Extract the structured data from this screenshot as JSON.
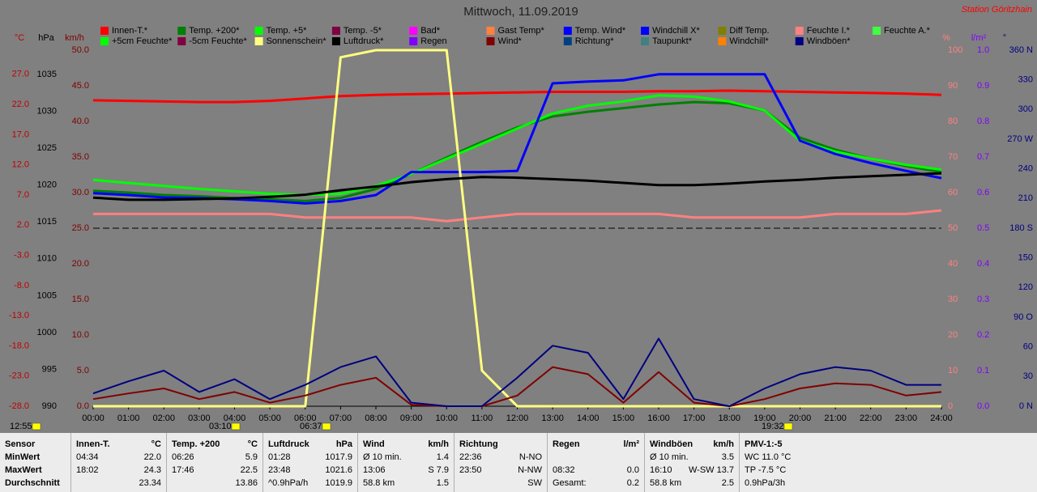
{
  "chart_data": {
    "type": "line",
    "title": "Mittwoch, 11.09.2019",
    "station": "Station Göritzhain",
    "categories": [
      "00:00",
      "01:00",
      "02:00",
      "03:00",
      "04:00",
      "05:00",
      "06:00",
      "07:00",
      "08:00",
      "09:00",
      "10:00",
      "11:00",
      "12:00",
      "13:00",
      "14:00",
      "15:00",
      "16:00",
      "17:00",
      "18:00",
      "19:00",
      "20:00",
      "21:00",
      "22:00",
      "23:00",
      "24:00"
    ],
    "time_markers": [
      "12:55",
      "03:10",
      "06:37",
      "19:32"
    ],
    "reference_line": 25,
    "axes": {
      "celsius": {
        "label": "°C",
        "color": "#c00000",
        "lim": [
          -28,
          31
        ],
        "ticks": [
          {
            "value": 27,
            "label": "27.0"
          },
          {
            "value": 22,
            "label": "22.0"
          },
          {
            "value": 17,
            "label": "17.0"
          },
          {
            "value": 12,
            "label": "12.0"
          },
          {
            "value": 7,
            "label": "7.0"
          },
          {
            "value": 2,
            "label": "2.0"
          },
          {
            "value": -3,
            "label": "-3.0"
          },
          {
            "value": -8,
            "label": "-8.0"
          },
          {
            "value": -13,
            "label": "-13.0"
          },
          {
            "value": -18,
            "label": "-18.0"
          },
          {
            "value": -23,
            "label": "-23.0"
          },
          {
            "value": -28,
            "label": "-28.0"
          }
        ]
      },
      "hpa": {
        "label": "hPa",
        "color": "#000000",
        "lim": [
          990,
          1038.3
        ],
        "ticks": [
          1035,
          1030,
          1025,
          1020,
          1015,
          1010,
          1005,
          1000,
          995,
          990
        ]
      },
      "kmh": {
        "label": "km/h",
        "color": "#800000",
        "lim": [
          0,
          50
        ],
        "ticks": [
          {
            "value": 50,
            "label": "50.0"
          },
          {
            "value": 45,
            "label": "45.0"
          },
          {
            "value": 40,
            "label": "40.0"
          },
          {
            "value": 35,
            "label": "35.0"
          },
          {
            "value": 30,
            "label": "30.0"
          },
          {
            "value": 25,
            "label": "25.0"
          },
          {
            "value": 20,
            "label": "20.0"
          },
          {
            "value": 15,
            "label": "15.0"
          },
          {
            "value": 10,
            "label": "10.0"
          },
          {
            "value": 5,
            "label": "5.0"
          },
          {
            "value": 0,
            "label": "0.0"
          }
        ]
      },
      "percent": {
        "label": "%",
        "color": "#ff8080",
        "lim": [
          0,
          100
        ],
        "ticks": [
          100,
          90,
          80,
          70,
          60,
          50,
          40,
          30,
          20,
          10,
          0
        ]
      },
      "rain": {
        "label": "l/m²",
        "color": "#8000ff",
        "lim": [
          0,
          1
        ],
        "ticks": [
          {
            "value": 1,
            "label": "1.0"
          },
          0.9,
          0.8,
          0.7,
          0.6,
          0.5,
          0.4,
          0.3,
          0.2,
          0.1,
          {
            "value": 0,
            "label": "0.0"
          }
        ]
      },
      "direction": {
        "label": "°",
        "color": "#000080",
        "lim": [
          0,
          360
        ],
        "ticks": [
          {
            "value": 360,
            "label": "360 N"
          },
          330,
          300,
          {
            "value": 270,
            "label": "270 W"
          },
          240,
          210,
          {
            "value": 180,
            "label": "180 S"
          },
          150,
          120,
          {
            "value": 90,
            "label": "90 O"
          },
          60,
          30,
          {
            "value": 0,
            "label": "0 N"
          }
        ]
      }
    },
    "series": [
      {
        "name": "Innen-T.*",
        "color": "#ff0000",
        "axis": "celsius",
        "values": [
          22.7,
          22.6,
          22.5,
          22.4,
          22.4,
          22.6,
          23.0,
          23.4,
          23.6,
          23.7,
          23.8,
          23.9,
          24.0,
          24.1,
          24.1,
          24.1,
          24.2,
          24.2,
          24.3,
          24.2,
          24.1,
          24.0,
          23.9,
          23.8,
          23.6
        ]
      },
      {
        "name": "Temp. +200*",
        "color": "#008000",
        "axis": "celsius",
        "values": [
          7.7,
          7.4,
          7.0,
          6.8,
          6.5,
          6.3,
          6.0,
          6.5,
          8.0,
          10.5,
          13.2,
          15.8,
          18.2,
          20.0,
          20.8,
          21.4,
          22.0,
          22.4,
          22.2,
          21.0,
          16.5,
          14.5,
          13.0,
          11.8,
          10.8
        ]
      },
      {
        "name": "Temp. +5*",
        "color": "#00ff00",
        "axis": "celsius",
        "values": [
          9.5,
          9.0,
          8.5,
          8.0,
          7.6,
          7.2,
          7.0,
          7.2,
          8.5,
          10.5,
          13.0,
          15.5,
          18.0,
          20.5,
          21.8,
          22.5,
          23.5,
          23.3,
          22.5,
          21.0,
          16.0,
          14.2,
          13.0,
          12.0,
          11.2
        ]
      },
      {
        "name": "Temp. -5*",
        "color": "#800040"
      },
      {
        "name": "Bad*",
        "color": "#ff00ff"
      },
      {
        "name": "Gast Temp*",
        "color": "#ff8040"
      },
      {
        "name": "Temp. Wind*",
        "color": "#0000ff",
        "axis": "celsius",
        "values": [
          7.3,
          7.0,
          6.6,
          6.5,
          6.3,
          6.0,
          5.6,
          6.0,
          7.0,
          10.8,
          10.8,
          10.8,
          11.0,
          25.5,
          25.8,
          26.0,
          27.0,
          27.0,
          27.0,
          27.0,
          16.0,
          13.8,
          12.3,
          11.0,
          9.8
        ]
      },
      {
        "name": "Windchill X*",
        "color": "#0000ff"
      },
      {
        "name": "Diff Temp.",
        "color": "#808000"
      },
      {
        "name": "Feuchte I.*",
        "color": "#ff8080",
        "axis": "percent",
        "values": [
          54,
          54,
          54,
          54,
          54,
          54,
          53,
          53,
          53,
          53,
          52,
          53,
          54,
          54,
          54,
          54,
          54,
          53,
          53,
          53,
          53,
          54,
          54,
          54,
          55
        ]
      },
      {
        "name": "Feuchte A.*",
        "color": "#40ff40"
      },
      {
        "name": "+5cm Feuchte*",
        "color": "#00ff00"
      },
      {
        "name": "-5cm Feuchte*",
        "color": "#800040"
      },
      {
        "name": "Sonnenschein*",
        "color": "#ffff80",
        "axis": "percent",
        "values": [
          0,
          0,
          0,
          0,
          0,
          0,
          0,
          98,
          100,
          100,
          100,
          10,
          0,
          0,
          0,
          0,
          0,
          0,
          0,
          0,
          0,
          0,
          0,
          0,
          0
        ]
      },
      {
        "name": "Luftdruck*",
        "color": "#000000",
        "axis": "hpa",
        "values": [
          1018.3,
          1018.0,
          1018.0,
          1018.1,
          1018.2,
          1018.4,
          1018.7,
          1019.3,
          1019.8,
          1020.4,
          1020.8,
          1021.1,
          1021.0,
          1020.8,
          1020.6,
          1020.3,
          1020.0,
          1020.0,
          1020.2,
          1020.5,
          1020.7,
          1021.0,
          1021.2,
          1021.4,
          1021.6
        ]
      },
      {
        "name": "Regen",
        "color": "#8000ff"
      },
      {
        "name": "Wind*",
        "color": "#800000",
        "axis": "kmh",
        "values": [
          1.0,
          1.8,
          2.5,
          1.0,
          2.0,
          0.5,
          1.5,
          3.0,
          4.0,
          0.2,
          0,
          0,
          1.5,
          5.5,
          4.5,
          0.5,
          4.8,
          0.5,
          0,
          1.0,
          2.5,
          3.2,
          3.0,
          1.5,
          2.0
        ]
      },
      {
        "name": "Richtung*",
        "color": "#004080"
      },
      {
        "name": "Taupunkt*",
        "color": "#408080"
      },
      {
        "name": "Windchill*",
        "color": "#ff8000"
      },
      {
        "name": "Windböen*",
        "color": "#000080",
        "axis": "kmh",
        "values": [
          1.8,
          3.5,
          5.0,
          2.0,
          3.8,
          1.0,
          3.0,
          5.5,
          7.0,
          0.5,
          0,
          0,
          4.0,
          8.5,
          7.5,
          1.0,
          9.5,
          1.0,
          0,
          2.5,
          4.5,
          5.5,
          5.0,
          3.0,
          3.0
        ]
      }
    ]
  },
  "stats": [
    {
      "title": "Sensor",
      "rows": [
        [
          "MinWert"
        ],
        [
          "MaxWert"
        ],
        [
          "Durchschnitt"
        ]
      ]
    },
    {
      "title": "Innen-T.",
      "unit": "°C",
      "rows": [
        [
          "04:34",
          "22.0"
        ],
        [
          "18:02",
          "24.3"
        ],
        [
          "23.34"
        ]
      ]
    },
    {
      "title": "Temp. +200",
      "unit": "°C",
      "rows": [
        [
          "06:26",
          "5.9"
        ],
        [
          "17:46",
          "22.5"
        ],
        [
          "13.86"
        ]
      ]
    },
    {
      "title": "Luftdruck",
      "unit": "hPa",
      "rows": [
        [
          "01:28",
          "1017.9"
        ],
        [
          "23:48",
          "1021.6"
        ],
        [
          "^0.9hPa/h",
          "1019.9"
        ]
      ]
    },
    {
      "title": "Wind",
      "unit": "km/h",
      "rows": [
        [
          "Ø 10 min.",
          "1.4"
        ],
        [
          "13:06",
          "S 7.9"
        ],
        [
          "58.8 km",
          "1.5"
        ]
      ]
    },
    {
      "title": "Richtung",
      "rows": [
        [
          "22:36",
          "N-NO"
        ],
        [
          "23:50",
          "N-NW"
        ],
        [
          "SW"
        ]
      ]
    },
    {
      "title": "Regen",
      "unit": "l/m²",
      "rows": [
        [],
        [
          "08:32",
          "0.0"
        ],
        [
          "Gesamt:",
          "0.2"
        ]
      ]
    },
    {
      "title": "Windböen",
      "unit": "km/h",
      "rows": [
        [
          "Ø 10 min.",
          "3.5"
        ],
        [
          "16:10",
          "W-SW 13.7"
        ],
        [
          "58.8 km",
          "2.5"
        ]
      ]
    },
    {
      "title": "PMV-1:-5",
      "rows": [
        [
          "WC 11.0 °C"
        ],
        [
          "TP -7.5 °C"
        ],
        [
          "0.9hPa/3h"
        ]
      ]
    }
  ]
}
